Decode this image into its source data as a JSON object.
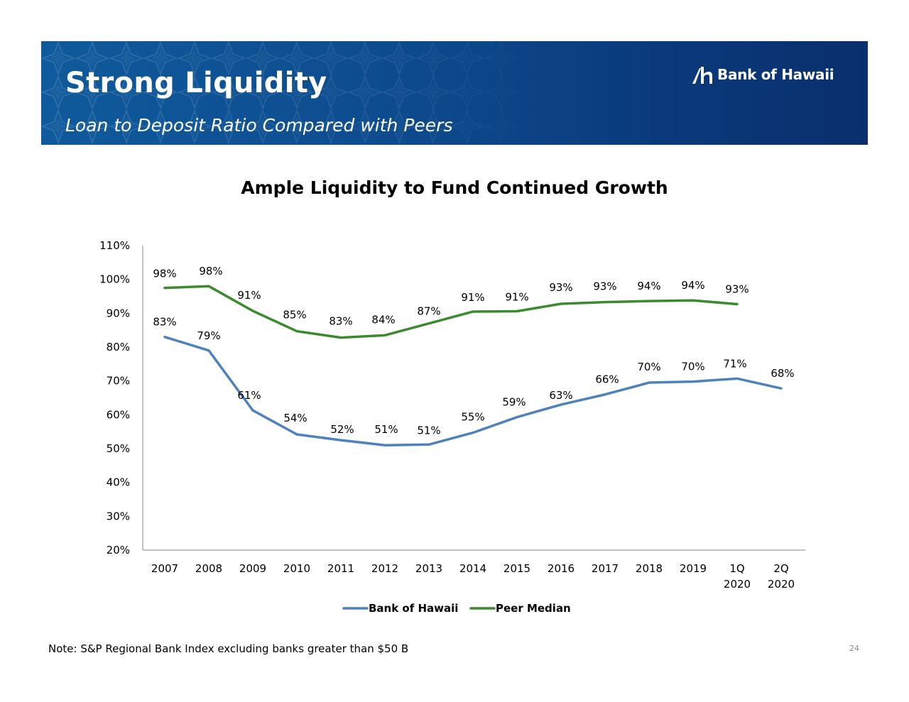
{
  "header": {
    "title": "Strong Liquidity",
    "subtitle": "Loan to Deposit Ratio Compared with Peers",
    "logo_text": "Bank of Hawaii",
    "brand_color": "#0d4a8d"
  },
  "chart_data": {
    "type": "line",
    "title": "Ample Liquidity to Fund Continued Growth",
    "xlabel": "",
    "ylabel": "",
    "categories": [
      "2007",
      "2008",
      "2009",
      "2010",
      "2011",
      "2012",
      "2013",
      "2014",
      "2015",
      "2016",
      "2017",
      "2018",
      "2019",
      "1Q 2020",
      "2Q 2020"
    ],
    "ylim": [
      20,
      110
    ],
    "yticks": [
      "20%",
      "30%",
      "40%",
      "50%",
      "60%",
      "70%",
      "80%",
      "90%",
      "100%",
      "110%"
    ],
    "grid": false,
    "legend_position": "bottom",
    "series": [
      {
        "name": "Bank of Hawaii",
        "color": "#4f81bd",
        "values": [
          83,
          79,
          61.3,
          54.2,
          52.5,
          51,
          51.2,
          54.7,
          59.3,
          63,
          66,
          69.5,
          69.8,
          70.7,
          67.8
        ],
        "labels": [
          "83%",
          "79%",
          "61%",
          "54%",
          "52%",
          "51%",
          "51%",
          "55%",
          "59%",
          "63%",
          "66%",
          "70%",
          "70%",
          "71%",
          "68%"
        ]
      },
      {
        "name": "Peer Median",
        "color": "#3b8a2f",
        "values": [
          97.5,
          98,
          90.7,
          84.7,
          82.8,
          83.5,
          87,
          90.5,
          90.6,
          92.8,
          93.3,
          93.6,
          93.8,
          92.7,
          null
        ],
        "labels": [
          "98%",
          "98%",
          "91%",
          "85%",
          "83%",
          "84%",
          "87%",
          "91%",
          "91%",
          "93%",
          "93%",
          "94%",
          "94%",
          "93%",
          null
        ]
      }
    ]
  },
  "footer": {
    "note": "Note: S&P Regional Bank Index excluding banks greater than $50 B",
    "page_number": "24"
  }
}
